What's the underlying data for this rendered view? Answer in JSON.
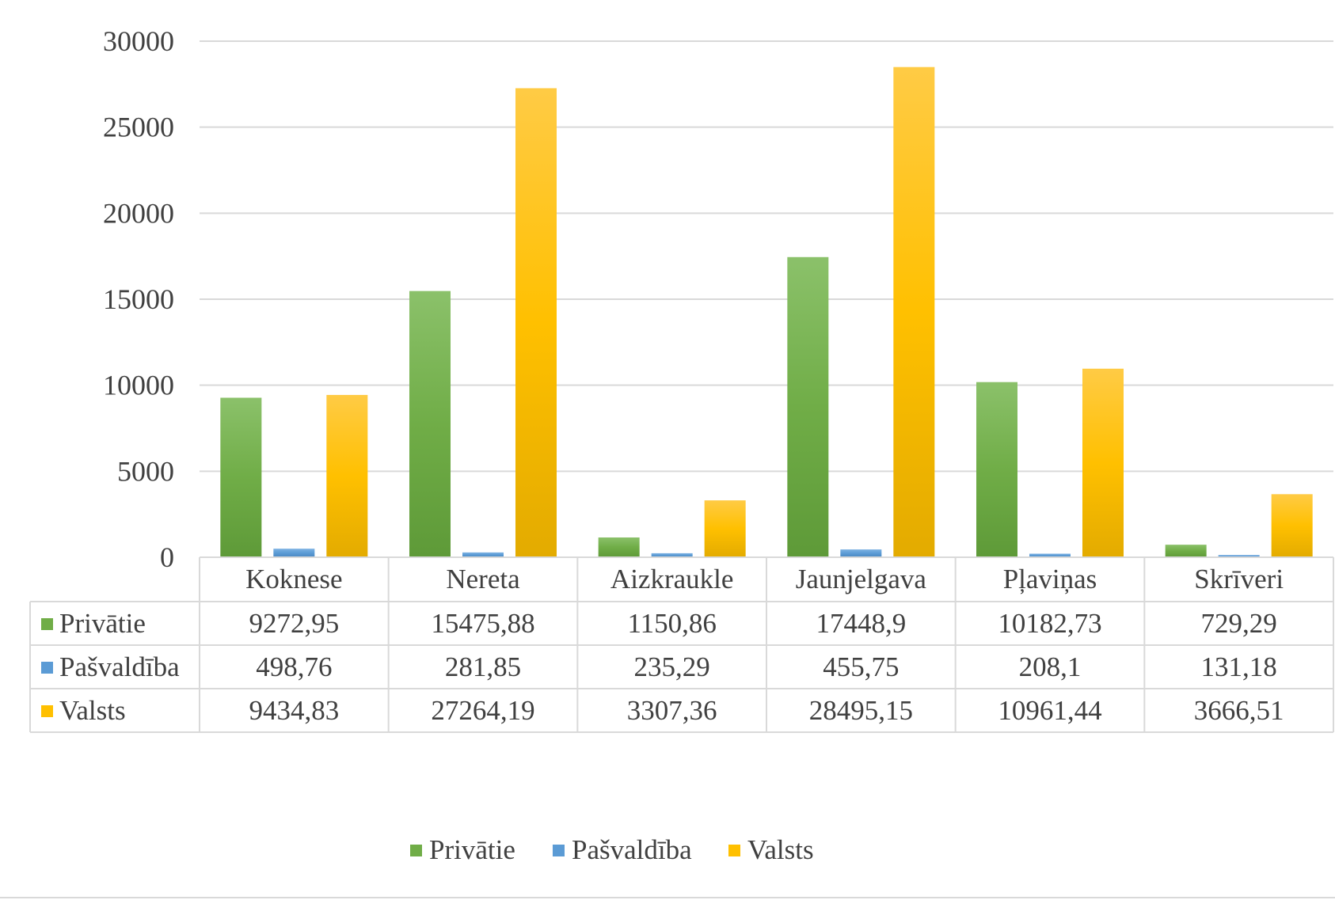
{
  "chart_data": {
    "type": "bar",
    "categories": [
      "Koknese",
      "Nereta",
      "Aizkraukle",
      "Jaunjelgava",
      "Pļaviņas",
      "Skrīveri"
    ],
    "series": [
      {
        "name": "Privātie",
        "color": "#70AD47",
        "values": [
          9272.95,
          15475.88,
          1150.86,
          17448.9,
          10182.73,
          729.29
        ],
        "labels": [
          "9272,95",
          "15475,88",
          "1150,86",
          "17448,9",
          "10182,73",
          "729,29"
        ]
      },
      {
        "name": "Pašvaldība",
        "color": "#5B9BD5",
        "values": [
          498.76,
          281.85,
          235.29,
          455.75,
          208.1,
          131.18
        ],
        "labels": [
          "498,76",
          "281,85",
          "235,29",
          "455,75",
          "208,1",
          "131,18"
        ]
      },
      {
        "name": "Valsts",
        "color": "#FFC000",
        "values": [
          9434.83,
          27264.19,
          3307.36,
          28495.15,
          10961.44,
          3666.51
        ],
        "labels": [
          "9434,83",
          "27264,19",
          "3307,36",
          "28495,15",
          "10961,44",
          "3666,51"
        ]
      }
    ],
    "ylim": [
      0,
      30000
    ],
    "yticks": [
      0,
      5000,
      10000,
      15000,
      20000,
      25000,
      30000
    ],
    "grid": true,
    "data_table": true,
    "legend_position": "bottom"
  }
}
